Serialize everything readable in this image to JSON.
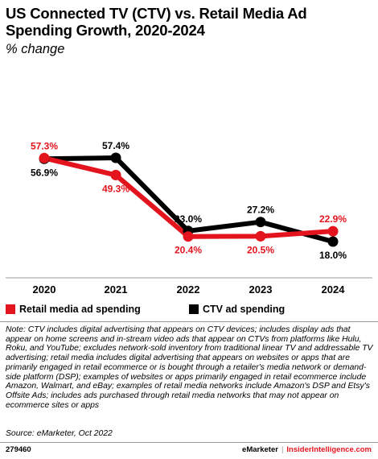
{
  "header": {
    "title": "US Connected TV (CTV) vs. Retail Media Ad Spending Growth, 2020-2024",
    "subtitle": "% change"
  },
  "colors": {
    "retail": "#e4141e",
    "ctv": "#000000",
    "axis": "#999999"
  },
  "chart_data": {
    "type": "line",
    "categories": [
      "2020",
      "2021",
      "2022",
      "2023",
      "2024"
    ],
    "series": [
      {
        "name": "Retail media ad spending",
        "values": [
          57.3,
          49.3,
          20.4,
          20.5,
          22.9
        ],
        "labels": [
          "57.3%",
          "49.3%",
          "20.4%",
          "20.5%",
          "22.9%"
        ],
        "label_position": [
          "above",
          "below",
          "below",
          "below",
          "above"
        ]
      },
      {
        "name": "CTV ad spending",
        "values": [
          56.9,
          57.4,
          23.0,
          27.2,
          18.0
        ],
        "labels": [
          "56.9%",
          "57.4%",
          "23.0%",
          "27.2%",
          "18.0%"
        ],
        "label_position": [
          "below",
          "above",
          "above",
          "above",
          "below"
        ]
      }
    ],
    "title": "US Connected TV (CTV) vs. Retail Media Ad Spending Growth, 2020-2024",
    "ylabel": "% change",
    "grid": false,
    "legend": "bottom"
  },
  "note": "Note: CTV includes digital advertising that appears on CTV devices; includes display ads that appear on home screens and in-stream video ads that appear on CTVs from platforms like Hulu, Roku, and YouTube; excludes network-sold inventory from traditional linear TV and addressable TV advertising; retail media includes digital advertising that appears on websites or apps that are primarily engaged in retail ecommerce or is bought through a retailer's media network or demand-side platform (DSP); examples of websites or apps primarily engaged in retail ecommerce include Amazon, Walmart, and eBay; examples of retail media networks include Amazon's DSP and Etsy's Offsite Ads; includes ads purchased through retail media networks that may not appear on ecommerce sites or apps",
  "source": "Source: eMarketer, Oct 2022",
  "footer": {
    "chart_id": "279460",
    "brand_left": "eMarketer",
    "separator": "|",
    "brand_right": "InsiderIntelligence.com"
  }
}
